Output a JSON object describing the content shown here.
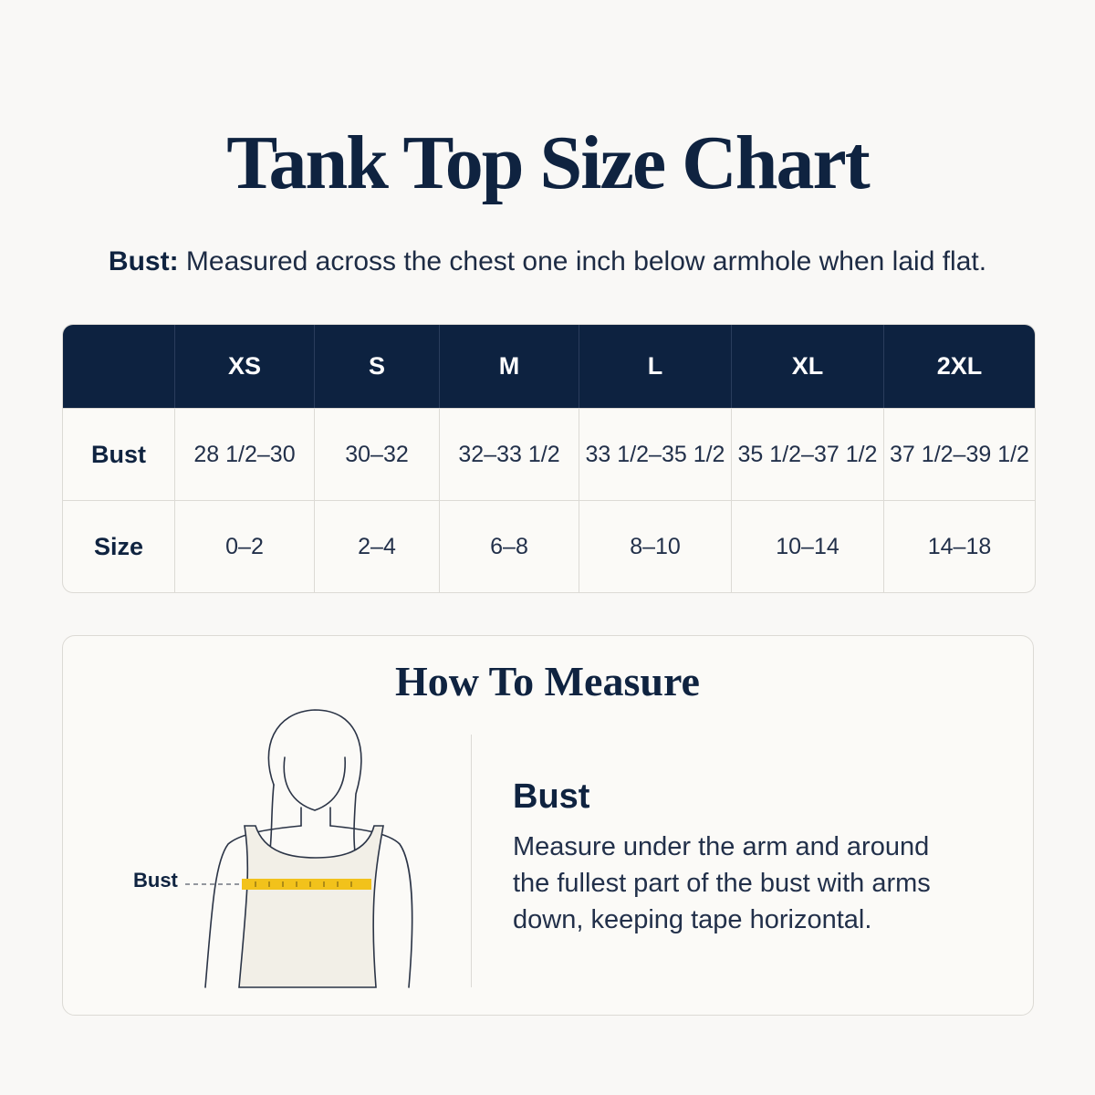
{
  "header": {
    "title": "Tank Top Size Chart",
    "note_label": "Bust:",
    "note_text": "Measured across the chest one inch below armhole when laid flat."
  },
  "table": {
    "columns": [
      "XS",
      "S",
      "M",
      "L",
      "XL",
      "2XL"
    ],
    "rows": [
      {
        "label": "Bust",
        "cells": [
          "28 1/2–30",
          "30–32",
          "32–33 1/2",
          "33 1/2–35 1/2",
          "35 1/2–37 1/2",
          "37 1/2–39 1/2"
        ]
      },
      {
        "label": "Size",
        "cells": [
          "0–2",
          "2–4",
          "6–8",
          "8–10",
          "10–14",
          "14–18"
        ]
      }
    ]
  },
  "measure": {
    "title": "How To Measure",
    "figure_label": "Bust",
    "heading": "Bust",
    "text": "Measure under the arm and around the fullest part of the bust with arms down, keeping tape horizontal."
  }
}
